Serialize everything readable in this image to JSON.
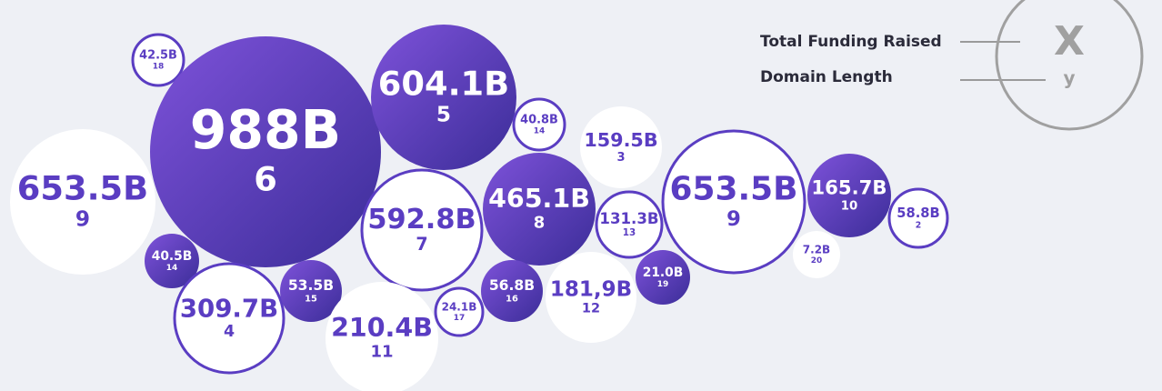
{
  "chart_data": {
    "type": "bubble",
    "legend": {
      "size_label": "Total Funding Raised",
      "length_label": "Domain Length",
      "x_symbol": "X",
      "y_symbol": "y"
    },
    "values": [
      42.5,
      988,
      604.1,
      40.8,
      159.5,
      653.5,
      592.8,
      465.1,
      131.3,
      653.5,
      165.7,
      58.8,
      40.5,
      7.2,
      309.7,
      53.5,
      210.4,
      24.1,
      56.8,
      181.9,
      21.0
    ],
    "value_labels": [
      "42.5B",
      "988B",
      "604.1B",
      "40.8B",
      "159.5B",
      "653.5B",
      "592.8B",
      "465.1B",
      "131.3B",
      "653.5B",
      "165.7B",
      "58.8B",
      "40.5B",
      "7.2B",
      "309.7B",
      "53.5B",
      "210.4B",
      "24.1B",
      "56.8B",
      "181,9B",
      "21.0B"
    ],
    "domain_lengths": [
      18,
      6,
      5,
      14,
      3,
      9,
      7,
      8,
      13,
      9,
      10,
      2,
      14,
      20,
      4,
      15,
      11,
      17,
      16,
      12,
      19
    ]
  }
}
